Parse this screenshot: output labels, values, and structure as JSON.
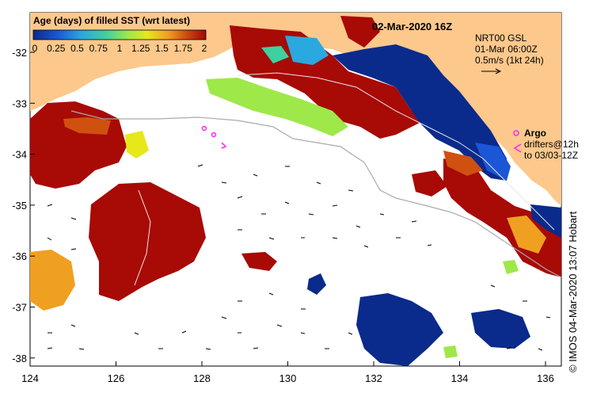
{
  "title": "02-Mar-2020 16Z",
  "colorbar": {
    "title": "Age (days) of filled SST (wrt latest)",
    "ticks": [
      "0",
      "0.25",
      "0.5",
      "0.75",
      "1",
      "1.25",
      "1.5",
      "1.75",
      "2"
    ],
    "colors": [
      "#0a2a8c",
      "#1a56d6",
      "#2aa8e0",
      "#3fd0a0",
      "#9ee84a",
      "#e6e81a",
      "#f0a020",
      "#d05010",
      "#a00808"
    ]
  },
  "current_info": {
    "line1": "NRT00 GSL",
    "line2": "01-Mar 06:00Z",
    "line3": "0.5m/s (1kt 24h)"
  },
  "legend": {
    "argo_label": "Argo",
    "drifters_line1": "drifters@12h",
    "drifters_line2": "to 03/03-12Z"
  },
  "x_ticks": [
    "124",
    "126",
    "128",
    "130",
    "132",
    "134",
    "136"
  ],
  "y_ticks": [
    "-32",
    "-33",
    "-34",
    "-35",
    "-36",
    "-37",
    "-38"
  ],
  "credit": "© IMOS 04-Mar-2020 13:07 Hobart",
  "colors": {
    "land": "#fcc88c",
    "old_fill": "#a80a06",
    "fresh_fill": "#0a2a8c",
    "vector": "#000000",
    "isobath": "#aaaaaa"
  }
}
